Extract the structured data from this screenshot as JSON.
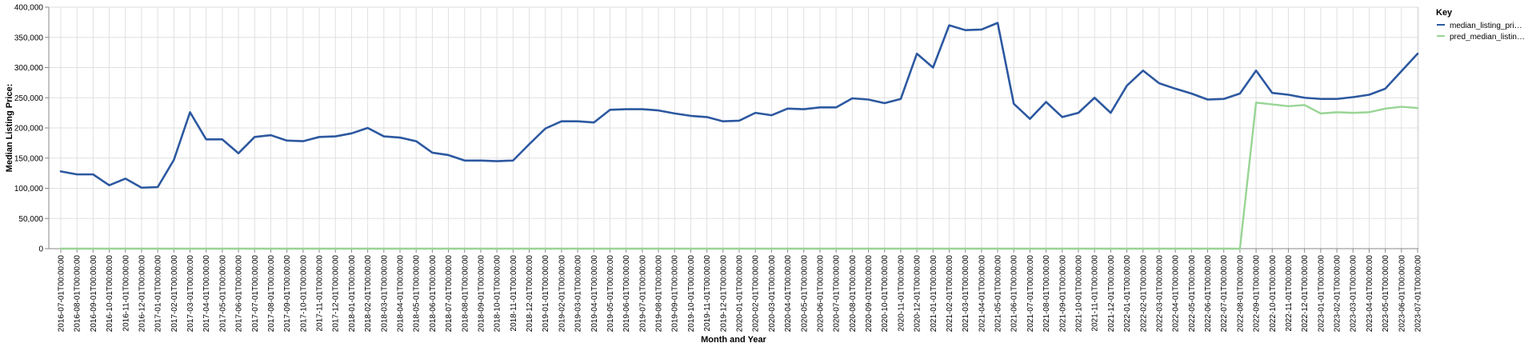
{
  "chart_data": {
    "type": "line",
    "xlabel": "Month and Year",
    "ylabel": "Median Listing Price:",
    "ylim": [
      0,
      400000
    ],
    "yticks": [
      "0",
      "50,000",
      "100,000",
      "150,000",
      "200,000",
      "250,000",
      "300,000",
      "350,000",
      "400,000"
    ],
    "grid": true,
    "legend": {
      "title": "Key",
      "position": "top-right",
      "entries": [
        "median_listing_pri…",
        "pred_median_listin…"
      ]
    },
    "x": [
      "2016-07-01T00:00:00",
      "2016-08-01T00:00:00",
      "2016-09-01T00:00:00",
      "2016-10-01T00:00:00",
      "2016-11-01T00:00:00",
      "2016-12-01T00:00:00",
      "2017-01-01T00:00:00",
      "2017-02-01T00:00:00",
      "2017-03-01T00:00:00",
      "2017-04-01T00:00:00",
      "2017-05-01T00:00:00",
      "2017-06-01T00:00:00",
      "2017-07-01T00:00:00",
      "2017-08-01T00:00:00",
      "2017-09-01T00:00:00",
      "2017-10-01T00:00:00",
      "2017-11-01T00:00:00",
      "2017-12-01T00:00:00",
      "2018-01-01T00:00:00",
      "2018-02-01T00:00:00",
      "2018-03-01T00:00:00",
      "2018-04-01T00:00:00",
      "2018-05-01T00:00:00",
      "2018-06-01T00:00:00",
      "2018-07-01T00:00:00",
      "2018-08-01T00:00:00",
      "2018-09-01T00:00:00",
      "2018-10-01T00:00:00",
      "2018-11-01T00:00:00",
      "2018-12-01T00:00:00",
      "2019-01-01T00:00:00",
      "2019-02-01T00:00:00",
      "2019-03-01T00:00:00",
      "2019-04-01T00:00:00",
      "2019-05-01T00:00:00",
      "2019-06-01T00:00:00",
      "2019-07-01T00:00:00",
      "2019-08-01T00:00:00",
      "2019-09-01T00:00:00",
      "2019-10-01T00:00:00",
      "2019-11-01T00:00:00",
      "2019-12-01T00:00:00",
      "2020-01-01T00:00:00",
      "2020-02-01T00:00:00",
      "2020-03-01T00:00:00",
      "2020-04-01T00:00:00",
      "2020-05-01T00:00:00",
      "2020-06-01T00:00:00",
      "2020-07-01T00:00:00",
      "2020-08-01T00:00:00",
      "2020-09-01T00:00:00",
      "2020-10-01T00:00:00",
      "2020-11-01T00:00:00",
      "2020-12-01T00:00:00",
      "2021-01-01T00:00:00",
      "2021-02-01T00:00:00",
      "2021-03-01T00:00:00",
      "2021-04-01T00:00:00",
      "2021-05-01T00:00:00",
      "2021-06-01T00:00:00",
      "2021-07-01T00:00:00",
      "2021-08-01T00:00:00",
      "2021-09-01T00:00:00",
      "2021-10-01T00:00:00",
      "2021-11-01T00:00:00",
      "2021-12-01T00:00:00",
      "2022-01-01T00:00:00",
      "2022-02-01T00:00:00",
      "2022-03-01T00:00:00",
      "2022-04-01T00:00:00",
      "2022-05-01T00:00:00",
      "2022-06-01T00:00:00",
      "2022-07-01T00:00:00",
      "2022-08-01T00:00:00",
      "2022-09-01T00:00:00",
      "2022-10-01T00:00:00",
      "2022-11-01T00:00:00",
      "2022-12-01T00:00:00",
      "2023-01-01T00:00:00",
      "2023-02-01T00:00:00",
      "2023-03-01T00:00:00",
      "2023-04-01T00:00:00",
      "2023-05-01T00:00:00",
      "2023-06-01T00:00:00",
      "2023-07-01T00:00:00"
    ],
    "series": [
      {
        "name": "median_listing_pri…",
        "color": "#2c58a0",
        "values": [
          128000,
          123000,
          123000,
          105000,
          116000,
          101000,
          102000,
          147000,
          226000,
          181000,
          181000,
          158000,
          185000,
          188000,
          179000,
          178000,
          185000,
          186000,
          191000,
          200000,
          186000,
          184000,
          178000,
          159000,
          155000,
          146000,
          146000,
          145000,
          146000,
          173000,
          199000,
          211000,
          211000,
          209000,
          230000,
          231000,
          231000,
          229000,
          224000,
          220000,
          218000,
          211000,
          212000,
          225000,
          221000,
          232000,
          231000,
          234000,
          234000,
          249000,
          247000,
          241000,
          248000,
          323000,
          300000,
          370000,
          362000,
          363000,
          374000,
          240000,
          215000,
          243000,
          218000,
          225000,
          250000,
          225000,
          270000,
          295000,
          274000,
          265000,
          257000,
          247000,
          248000,
          257000,
          295000,
          258000,
          255000,
          250000,
          248000,
          248000,
          251000,
          255000,
          265000,
          294000,
          323000
        ]
      },
      {
        "name": "pred_median_listin…",
        "color": "#98d594",
        "values": [
          0,
          0,
          0,
          0,
          0,
          0,
          0,
          0,
          0,
          0,
          0,
          0,
          0,
          0,
          0,
          0,
          0,
          0,
          0,
          0,
          0,
          0,
          0,
          0,
          0,
          0,
          0,
          0,
          0,
          0,
          0,
          0,
          0,
          0,
          0,
          0,
          0,
          0,
          0,
          0,
          0,
          0,
          0,
          0,
          0,
          0,
          0,
          0,
          0,
          0,
          0,
          0,
          0,
          0,
          0,
          0,
          0,
          0,
          0,
          0,
          0,
          0,
          0,
          0,
          0,
          0,
          0,
          0,
          0,
          0,
          0,
          0,
          0,
          0,
          242000,
          239000,
          236000,
          238000,
          224000,
          226000,
          225000,
          226000,
          232000,
          235000,
          233000
        ]
      }
    ]
  }
}
